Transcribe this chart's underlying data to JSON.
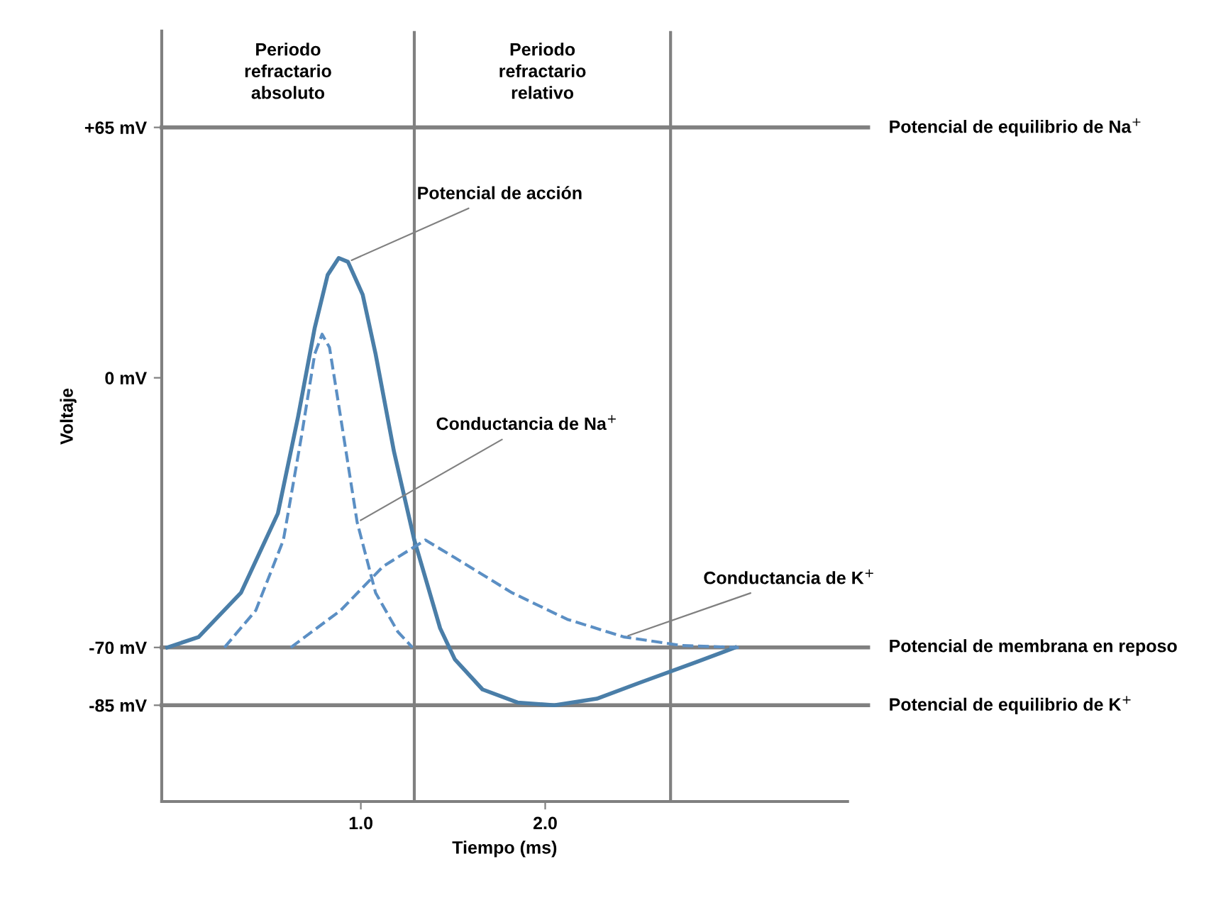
{
  "chart_data": {
    "type": "line",
    "xlabel": "Tiempo (ms)",
    "ylabel": "Voltaje",
    "xlim": [
      -0.08,
      3.64
    ],
    "ylim": [
      -110,
      90
    ],
    "xticks": [
      {
        "value": 1,
        "label": "1.0"
      },
      {
        "value": 2,
        "label": "2.0"
      }
    ],
    "yticks": [
      {
        "value": 65,
        "label": "+65 mV"
      },
      {
        "value": 0,
        "label": "0 mV"
      },
      {
        "value": -70,
        "label": "-70 mV"
      },
      {
        "value": -85,
        "label": "-85 mV"
      }
    ],
    "grid": false,
    "legend": false,
    "marker": "none",
    "series": [
      {
        "name": "Potencial de acción",
        "color": "#4a7ea8",
        "line_style": "solid",
        "x": [
          -0.05,
          0.12,
          0.35,
          0.55,
          0.66,
          0.75,
          0.82,
          0.88,
          0.93,
          1.01,
          1.08,
          1.18,
          1.29,
          1.43,
          1.51,
          1.66,
          1.85,
          2.05,
          2.28,
          2.51,
          2.82,
          3.03
        ],
        "values": [
          -70,
          -67.3,
          -55.8,
          -35.2,
          -10,
          13,
          26.7,
          31.1,
          30.1,
          21.6,
          6.2,
          -19.2,
          -42.1,
          -65,
          -73.1,
          -80.9,
          -84.3,
          -85,
          -83.3,
          -79.2,
          -73.8,
          -70
        ]
      },
      {
        "name": "Conductancia de Na$^{+}$",
        "color": "#5b8fc4",
        "line_style": "dashed",
        "x": [
          0.26,
          0.43,
          0.58,
          0.68,
          0.75,
          0.79,
          0.83,
          0.89,
          0.98,
          1.08,
          1.2,
          1.28
        ],
        "values": [
          -70,
          -60.4,
          -42.1,
          -14.6,
          6.2,
          11.3,
          7.9,
          -10.1,
          -37.5,
          -55.8,
          -65.9,
          -70
        ]
      },
      {
        "name": "Conductancia de K$^{+}$",
        "color": "#5b8fc4",
        "line_style": "dashed",
        "x": [
          0.62,
          0.89,
          1.12,
          1.35,
          1.51,
          1.82,
          2.12,
          2.43,
          2.74,
          3.05
        ],
        "values": [
          -70,
          -60.4,
          -49,
          -42.1,
          -46.7,
          -55.8,
          -62.7,
          -67.3,
          -69.5,
          -70
        ]
      }
    ],
    "ref_lines": [
      {
        "axis": "y",
        "value": 65,
        "label": "Potencial de equilibrio de Na$^{+}$",
        "color": "#808080"
      },
      {
        "axis": "y",
        "value": -70,
        "label": "Potencial de membrana en reposo",
        "color": "#808080"
      },
      {
        "axis": "y",
        "value": -85,
        "label": "Potencial de equilibrio de K$^{+}$",
        "color": "#808080"
      },
      {
        "axis": "x",
        "value": 1.29,
        "color": "#808080"
      },
      {
        "axis": "x",
        "value": 2.68,
        "color": "#808080"
      }
    ],
    "annotations": [
      "Periodo\nrefractario\nabsoluto",
      "Periodo\nrefractario\nrelativo"
    ]
  }
}
